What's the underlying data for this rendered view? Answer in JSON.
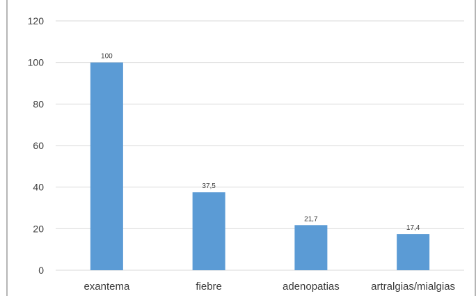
{
  "chart_data": {
    "type": "bar",
    "categories": [
      "exantema",
      "fiebre",
      "adenopatias",
      "artralgias/mialgias"
    ],
    "values": [
      100,
      37.5,
      21.7,
      17.4
    ],
    "data_labels": [
      "100",
      "37,5",
      "21,7",
      "17,4"
    ],
    "y_ticks": [
      "0",
      "20",
      "40",
      "60",
      "80",
      "100",
      "120"
    ],
    "ylim": [
      0,
      120
    ],
    "grid": true,
    "legend": "none",
    "bar_color": "#5b9bd5"
  }
}
